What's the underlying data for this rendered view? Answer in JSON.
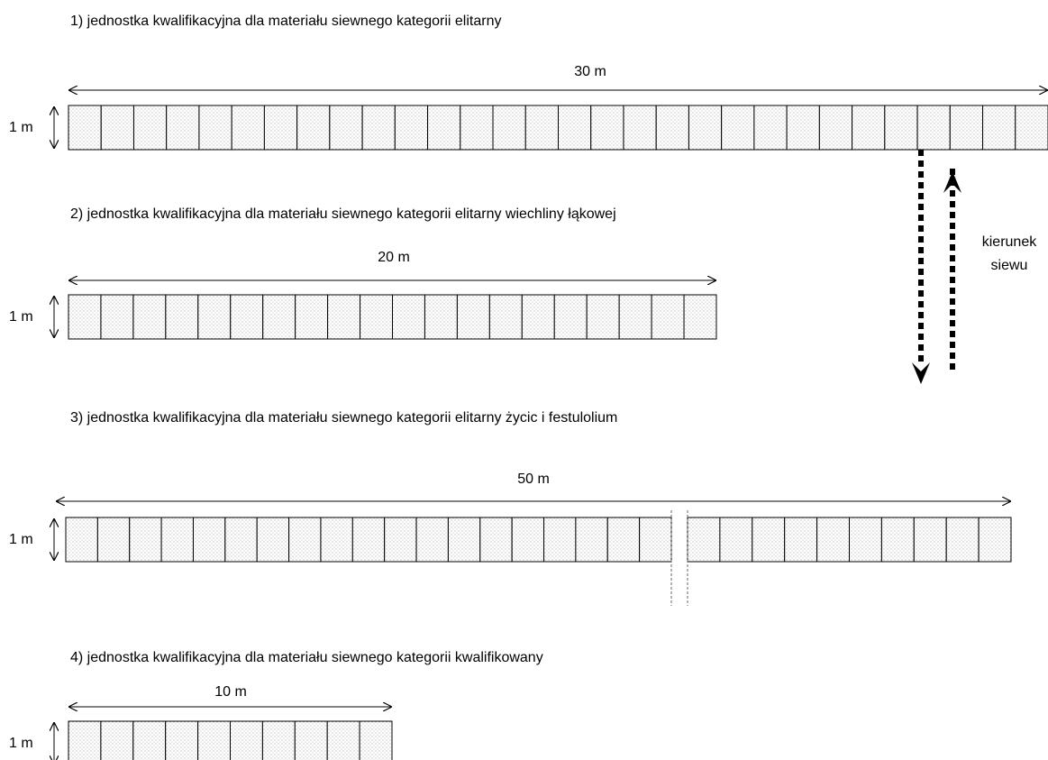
{
  "sections": [
    {
      "title": "1) jednostka kwalifikacyjna dla materiału siewnego kategorii elitarny",
      "length": "30 m",
      "height": "1 m"
    },
    {
      "title": "2) jednostka kwalifikacyjna dla materiału siewnego kategorii elitarny wiechliny łąkowej",
      "length": "20 m",
      "height": "1 m"
    },
    {
      "title": "3) jednostka kwalifikacyjna dla materiału siewnego kategorii elitarny życic i festulolium",
      "length": "50 m",
      "height": "1 m"
    },
    {
      "title": "4) jednostka kwalifikacyjna dla materiału siewnego kategorii kwalifikowany",
      "length": "10 m",
      "height": "1 m"
    }
  ],
  "annotation": {
    "lines": [
      "kierunek",
      "siewu"
    ]
  }
}
